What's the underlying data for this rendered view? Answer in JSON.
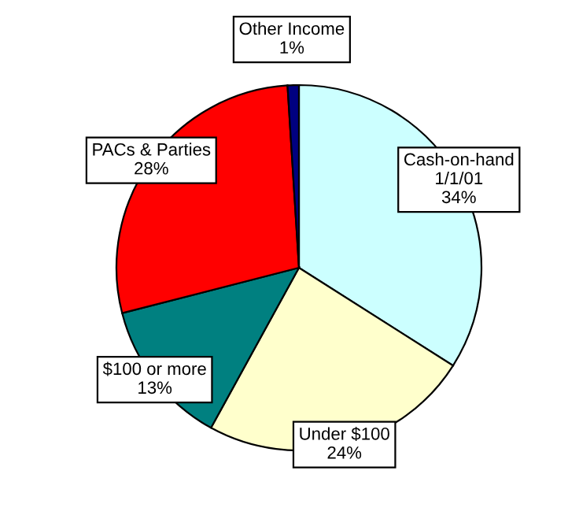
{
  "chart_data": {
    "type": "pie",
    "categories": [
      "Cash-on-hand\n1/1/01",
      "Under $100",
      "$100 or more",
      "PACs & Parties",
      "Other Income"
    ],
    "values": [
      34,
      24,
      13,
      28,
      1
    ],
    "colors": [
      "#ccffff",
      "#ffffcc",
      "#008080",
      "#ff0000",
      "#000080"
    ],
    "value_labels": [
      "34%",
      "24%",
      "13%",
      "28%",
      "1%"
    ],
    "legend": false
  }
}
